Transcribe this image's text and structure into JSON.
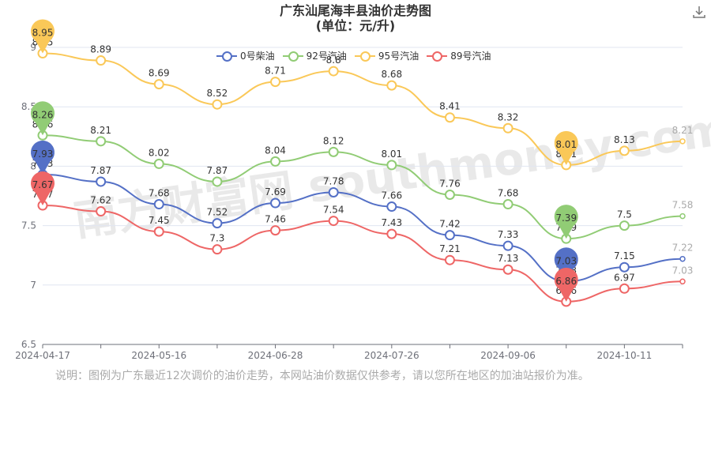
{
  "title": {
    "line1": "广东汕尾海丰县油价走势图",
    "line2": "(单位：元/升)"
  },
  "note": "说明：图例为广东最近12次调价的油价走势，本网站油价数据仅供参考，请以您所在地区的加油站报价为准。",
  "watermark": "南方财富网 southmoney.com",
  "download_icon": "download-icon",
  "chart_data": {
    "type": "line",
    "title": "广东汕尾海丰县油价走势图",
    "subtitle": "(单位：元/升)",
    "xlabel": "",
    "ylabel": "",
    "ylim": [
      6.5,
      9
    ],
    "y_ticks": [
      "6.5",
      "7",
      "7.5",
      "8",
      "8.5",
      "9"
    ],
    "x_tick_labels": [
      "2024-04-17",
      "2024-05-16",
      "2024-06-28",
      "2024-07-26",
      "2024-09-06",
      "2024-10-11"
    ],
    "x_tick_positions": [
      0,
      2,
      4,
      6,
      8,
      10
    ],
    "grid": true,
    "legend_position": "top",
    "series": [
      {
        "name": "0号柴油",
        "color": "#5470c6",
        "values": [
          7.93,
          7.87,
          7.68,
          7.52,
          7.69,
          7.78,
          7.66,
          7.42,
          7.33,
          7.03,
          7.15,
          7.22
        ],
        "max_label": "7.93",
        "min_label": "7.03"
      },
      {
        "name": "92号汽油",
        "color": "#91cc75",
        "values": [
          8.26,
          8.21,
          8.02,
          7.87,
          8.04,
          8.12,
          8.01,
          7.76,
          7.68,
          7.39,
          7.5,
          7.58
        ],
        "max_label": "8.26",
        "min_label": "7.39"
      },
      {
        "name": "95号汽油",
        "color": "#fac858",
        "values": [
          8.95,
          8.89,
          8.69,
          8.52,
          8.71,
          8.8,
          8.68,
          8.41,
          8.32,
          8.01,
          8.13,
          8.21
        ],
        "max_label": "8.95",
        "min_label": "8.01"
      },
      {
        "name": "89号汽油",
        "color": "#ee6666",
        "values": [
          7.67,
          7.62,
          7.45,
          7.3,
          7.46,
          7.54,
          7.43,
          7.21,
          7.13,
          6.86,
          6.97,
          7.03
        ],
        "max_label": "7.67",
        "min_label": "6.86"
      }
    ]
  }
}
